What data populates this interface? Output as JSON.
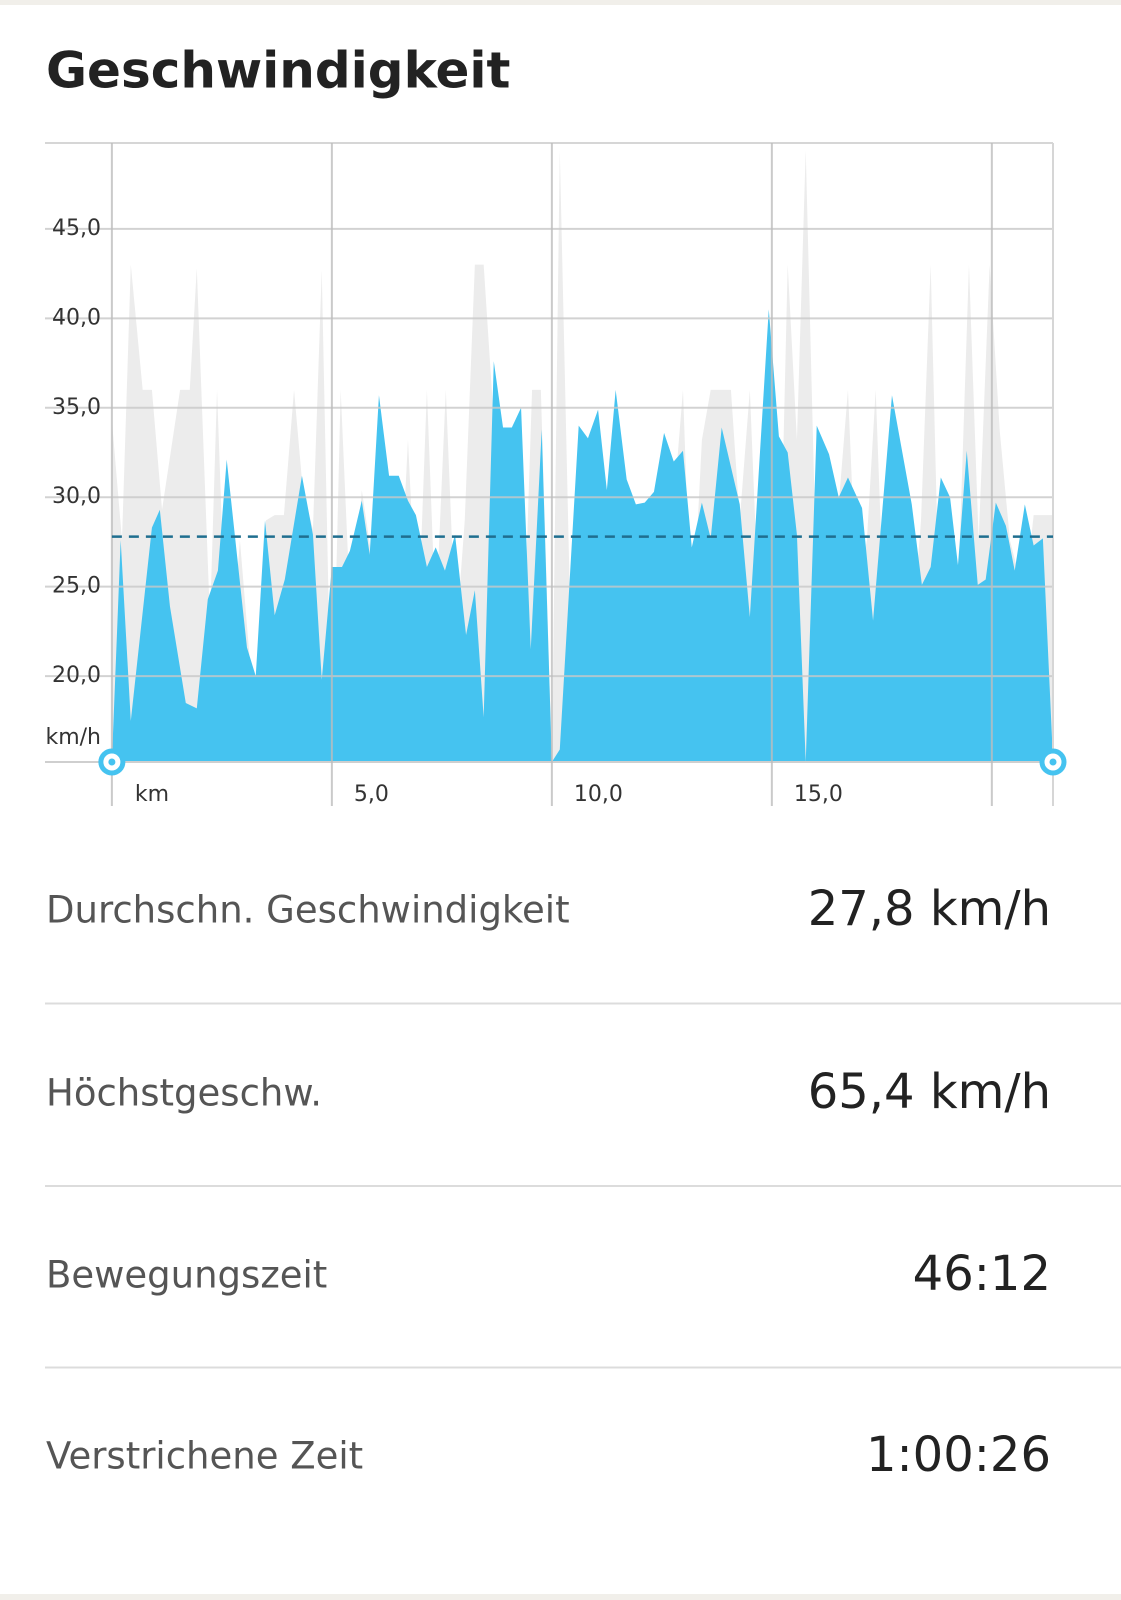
{
  "header": {
    "title": "Geschwindigkeit"
  },
  "chart_data": {
    "type": "area",
    "y_label": "km/h",
    "x_label": "km",
    "ylim": [
      15.2,
      49.8
    ],
    "xlim": [
      -1.52,
      21.39
    ],
    "yticks": [
      {
        "value": 20,
        "label": "20,0"
      },
      {
        "value": 25,
        "label": "25,0"
      },
      {
        "value": 30,
        "label": "30,0"
      },
      {
        "value": 35,
        "label": "35,0"
      },
      {
        "value": 40,
        "label": "40,0"
      },
      {
        "value": 45,
        "label": "45,0"
      }
    ],
    "xticks": [
      {
        "value": 5,
        "label": "5,0"
      },
      {
        "value": 10,
        "label": "10,0"
      },
      {
        "value": 15,
        "label": "15,0"
      }
    ],
    "xgrid": [
      0,
      5,
      10,
      15,
      20
    ],
    "grid": true,
    "average": 27.8,
    "average_color": "#1f6e8f",
    "series": [
      {
        "color": "#ececec",
        "x": [
          0,
          0.23,
          0.43,
          0.7,
          0.91,
          1.14,
          1.55,
          1.77,
          1.93,
          2.23,
          2.39,
          2.64,
          2.91,
          3.25,
          3.5,
          3.7,
          3.91,
          4.14,
          4.34,
          4.57,
          4.77,
          5.0,
          5.2,
          5.45,
          5.68,
          5.98,
          6.32,
          6.5,
          6.73,
          6.95,
          7.16,
          7.36,
          7.59,
          7.82,
          8.02,
          8.25,
          8.45,
          8.68,
          8.89,
          9.09,
          9.32,
          9.55,
          9.75,
          10.0,
          10.18,
          10.41,
          10.64,
          11.02,
          11.25,
          11.48,
          11.7,
          12.11,
          12.75,
          12.98,
          13.18,
          13.41,
          13.61,
          14.07,
          14.27,
          14.5,
          14.73,
          14.93,
          15.16,
          15.36,
          15.57,
          15.77,
          16.05,
          16.27,
          16.5,
          16.73,
          16.93,
          17.16,
          17.36,
          17.57,
          17.77,
          18.0,
          18.18,
          18.39,
          18.61,
          18.82,
          19.05,
          19.25,
          19.48,
          19.7,
          19.95,
          20.18,
          20.41,
          20.75,
          20.95,
          21.39
        ],
        "values": [
          34.3,
          27.6,
          43.0,
          36.0,
          36.0,
          29.3,
          36.0,
          36.0,
          42.8,
          23.1,
          36.0,
          18.7,
          27.6,
          17.5,
          28.7,
          29.0,
          29.0,
          36.0,
          30.4,
          28.2,
          42.7,
          15.2,
          36.0,
          22.0,
          30.4,
          25.4,
          22.0,
          22.0,
          33.2,
          22.0,
          36.0,
          23.1,
          36.0,
          22.0,
          28.7,
          43.0,
          43.0,
          34.3,
          25.9,
          28.7,
          18.7,
          36.0,
          36.0,
          15.2,
          49.4,
          24.3,
          22.0,
          22.0,
          28.7,
          22.0,
          24.3,
          29.0,
          29.0,
          36.0,
          22.0,
          33.2,
          36.0,
          36.0,
          28.7,
          36.0,
          22.0,
          36.0,
          22.0,
          43.0,
          33.2,
          49.4,
          22.0,
          29.0,
          29.0,
          36.0,
          24.3,
          27.6,
          36.0,
          22.0,
          27.6,
          22.0,
          22.0,
          28.7,
          43.0,
          22.0,
          28.7,
          25.9,
          43.0,
          27.6,
          43.0,
          33.7,
          27.6,
          24.3,
          29.0,
          29.0
        ]
      },
      {
        "color": "#45c3f0",
        "x": [
          0,
          0.2,
          0.43,
          0.91,
          1.09,
          1.32,
          1.68,
          1.93,
          2.18,
          2.41,
          2.61,
          2.82,
          3.07,
          3.27,
          3.48,
          3.7,
          3.93,
          4.32,
          4.57,
          4.77,
          5.0,
          5.23,
          5.41,
          5.68,
          5.86,
          6.07,
          6.3,
          6.52,
          6.73,
          6.91,
          7.16,
          7.36,
          7.57,
          7.8,
          8.05,
          8.25,
          8.45,
          8.68,
          8.89,
          9.09,
          9.3,
          9.52,
          9.77,
          10.0,
          10.18,
          10.61,
          10.82,
          11.05,
          11.25,
          11.45,
          11.7,
          11.91,
          12.11,
          12.32,
          12.55,
          12.77,
          12.98,
          13.18,
          13.41,
          13.61,
          13.86,
          14.27,
          14.5,
          14.93,
          15.16,
          15.36,
          15.57,
          15.77,
          16.02,
          16.3,
          16.52,
          16.73,
          17.05,
          17.3,
          17.73,
          18.18,
          18.41,
          18.61,
          18.84,
          19.05,
          19.23,
          19.43,
          19.68,
          19.86,
          20.09,
          20.32,
          20.52,
          20.75,
          20.95,
          21.16,
          21.39
        ],
        "values": [
          15.2,
          27.6,
          17.5,
          28.3,
          29.3,
          23.9,
          18.5,
          18.2,
          24.3,
          25.9,
          32.1,
          27.3,
          21.6,
          20.0,
          28.7,
          23.4,
          25.4,
          31.2,
          27.9,
          19.8,
          26.1,
          26.1,
          27.0,
          29.8,
          26.8,
          35.7,
          31.2,
          31.2,
          29.8,
          29.0,
          26.1,
          27.2,
          25.9,
          27.9,
          22.3,
          24.8,
          17.7,
          37.6,
          33.9,
          33.9,
          35.0,
          21.5,
          33.8,
          15.2,
          15.9,
          34.0,
          33.3,
          34.9,
          30.4,
          36.0,
          31.0,
          29.6,
          29.7,
          30.3,
          33.6,
          32.0,
          32.6,
          27.2,
          29.7,
          27.7,
          33.9,
          29.6,
          23.3,
          40.5,
          33.4,
          32.5,
          27.9,
          15.2,
          34.0,
          32.4,
          30.0,
          31.1,
          29.4,
          23.1,
          35.7,
          29.6,
          25.1,
          26.1,
          31.1,
          30.0,
          26.2,
          32.6,
          25.1,
          25.4,
          29.7,
          28.4,
          25.9,
          29.6,
          27.3,
          27.7,
          15.3
        ]
      }
    ]
  },
  "stats": [
    {
      "label": "Durchschn. Geschwindigkeit",
      "value": "27,8 km/h"
    },
    {
      "label": "Höchstgeschw.",
      "value": "65,4 km/h"
    },
    {
      "label": "Bewegungszeit",
      "value": "46:12"
    },
    {
      "label": "Verstrichene Zeit",
      "value": "1:00:26"
    }
  ]
}
